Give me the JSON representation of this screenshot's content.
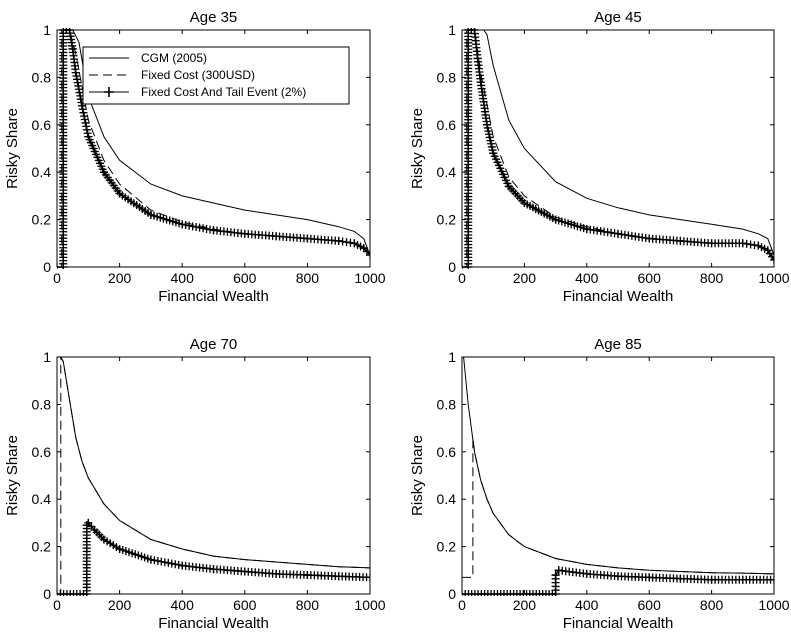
{
  "chart_data": [
    {
      "type": "line",
      "title": "Age 35",
      "xlabel": "Financial Wealth",
      "ylabel": "Risky Share",
      "xlim": [
        0,
        1000
      ],
      "ylim": [
        0,
        1
      ],
      "xticks": [
        0,
        200,
        400,
        600,
        800,
        1000
      ],
      "yticks": [
        0,
        0.2,
        0.4,
        0.6,
        0.8,
        1
      ],
      "legend": {
        "placement": "top-right",
        "entries": [
          "CGM (2005)",
          "Fixed Cost (300USD)",
          "Fixed Cost And Tail Event (2%)"
        ]
      },
      "series": [
        {
          "name": "CGM (2005)",
          "style": "solid",
          "x": [
            0,
            15,
            30,
            50,
            70,
            100,
            150,
            200,
            300,
            400,
            500,
            600,
            700,
            800,
            900,
            950,
            980,
            1000
          ],
          "y": [
            1,
            1,
            1,
            1,
            0.95,
            0.72,
            0.55,
            0.45,
            0.35,
            0.3,
            0.27,
            0.24,
            0.22,
            0.2,
            0.17,
            0.15,
            0.12,
            0.05
          ]
        },
        {
          "name": "Fixed Cost (300USD)",
          "style": "dashed",
          "x": [
            0,
            15,
            15,
            20,
            40,
            60,
            100,
            150,
            200,
            300,
            400,
            500,
            600,
            700,
            800,
            900,
            950,
            980,
            1000
          ],
          "y": [
            0,
            0,
            1,
            1,
            1,
            0.9,
            0.62,
            0.45,
            0.35,
            0.24,
            0.19,
            0.16,
            0.14,
            0.13,
            0.12,
            0.11,
            0.1,
            0.08,
            0.05
          ]
        },
        {
          "name": "Fixed Cost And Tail Event (2%)",
          "style": "plus",
          "x": [
            0,
            20,
            20,
            30,
            40,
            50,
            60,
            80,
            100,
            150,
            200,
            300,
            400,
            500,
            600,
            700,
            800,
            900,
            950,
            980,
            1000
          ],
          "y": [
            0,
            0,
            1,
            1,
            1,
            0.92,
            0.82,
            0.68,
            0.55,
            0.4,
            0.31,
            0.22,
            0.18,
            0.155,
            0.14,
            0.13,
            0.12,
            0.11,
            0.1,
            0.08,
            0.05
          ]
        }
      ]
    },
    {
      "type": "line",
      "title": "Age 45",
      "xlabel": "Financial Wealth",
      "ylabel": "Risky Share",
      "xlim": [
        0,
        1000
      ],
      "ylim": [
        0,
        1
      ],
      "xticks": [
        0,
        200,
        400,
        600,
        800,
        1000
      ],
      "yticks": [
        0,
        0.2,
        0.4,
        0.6,
        0.8,
        1
      ],
      "series": [
        {
          "name": "CGM (2005)",
          "style": "solid",
          "x": [
            0,
            15,
            30,
            50,
            70,
            80,
            100,
            150,
            200,
            300,
            400,
            500,
            600,
            700,
            800,
            900,
            950,
            980,
            1000
          ],
          "y": [
            1,
            1,
            1,
            1,
            1,
            0.98,
            0.85,
            0.62,
            0.5,
            0.36,
            0.29,
            0.25,
            0.22,
            0.2,
            0.18,
            0.16,
            0.14,
            0.12,
            0.05
          ]
        },
        {
          "name": "Fixed Cost (300USD)",
          "style": "dashed",
          "x": [
            0,
            15,
            15,
            20,
            40,
            60,
            100,
            150,
            200,
            300,
            400,
            500,
            600,
            700,
            800,
            900,
            950,
            980,
            1000
          ],
          "y": [
            0,
            0,
            1,
            1,
            1,
            0.82,
            0.55,
            0.38,
            0.3,
            0.21,
            0.17,
            0.14,
            0.12,
            0.11,
            0.1,
            0.1,
            0.09,
            0.07,
            0.03
          ]
        },
        {
          "name": "Fixed Cost And Tail Event (2%)",
          "style": "plus",
          "x": [
            0,
            20,
            20,
            30,
            40,
            50,
            60,
            80,
            100,
            150,
            200,
            300,
            400,
            500,
            600,
            700,
            800,
            900,
            950,
            980,
            1000
          ],
          "y": [
            0,
            0,
            1,
            1,
            1,
            0.88,
            0.78,
            0.6,
            0.48,
            0.34,
            0.27,
            0.2,
            0.16,
            0.14,
            0.12,
            0.11,
            0.1,
            0.1,
            0.09,
            0.07,
            0.03
          ]
        }
      ]
    },
    {
      "type": "line",
      "title": "Age 70",
      "xlabel": "Financial Wealth",
      "ylabel": "Risky Share",
      "xlim": [
        0,
        1000
      ],
      "ylim": [
        0,
        1
      ],
      "xticks": [
        0,
        200,
        400,
        600,
        800,
        1000
      ],
      "yticks": [
        0,
        0.2,
        0.4,
        0.6,
        0.8,
        1
      ],
      "series": [
        {
          "name": "CGM (2005)",
          "style": "solid",
          "x": [
            0,
            10,
            20,
            40,
            60,
            80,
            100,
            150,
            200,
            300,
            400,
            500,
            600,
            700,
            800,
            900,
            1000
          ],
          "y": [
            1,
            1,
            0.98,
            0.82,
            0.66,
            0.56,
            0.49,
            0.38,
            0.31,
            0.23,
            0.19,
            0.16,
            0.145,
            0.135,
            0.125,
            0.115,
            0.11
          ]
        },
        {
          "name": "Fixed Cost (300USD)",
          "style": "dashed",
          "x": [
            0,
            12,
            12,
            20,
            40,
            60,
            80,
            100,
            150,
            200,
            300,
            400,
            500,
            600,
            700,
            800,
            900,
            1000
          ],
          "y": [
            0,
            0,
            1,
            0.98,
            0.82,
            0.66,
            0.56,
            0.49,
            0.38,
            0.31,
            0.23,
            0.19,
            0.16,
            0.145,
            0.135,
            0.125,
            0.115,
            0.11
          ]
        },
        {
          "name": "Fixed Cost And Tail Event (2%)",
          "style": "plus",
          "x": [
            0,
            95,
            95,
            100,
            120,
            150,
            200,
            300,
            400,
            500,
            600,
            700,
            800,
            900,
            1000
          ],
          "y": [
            0,
            0,
            0.29,
            0.3,
            0.27,
            0.23,
            0.19,
            0.145,
            0.12,
            0.105,
            0.095,
            0.085,
            0.08,
            0.075,
            0.07
          ]
        }
      ]
    },
    {
      "type": "line",
      "title": "Age 85",
      "xlabel": "Financial Wealth",
      "ylabel": "Risky Share",
      "xlim": [
        0,
        1000
      ],
      "ylim": [
        0,
        1
      ],
      "xticks": [
        0,
        200,
        400,
        600,
        800,
        1000
      ],
      "yticks": [
        0,
        0.2,
        0.4,
        0.6,
        0.8,
        1
      ],
      "series": [
        {
          "name": "CGM (2005)",
          "style": "solid",
          "x": [
            0,
            5,
            20,
            40,
            60,
            80,
            100,
            150,
            200,
            300,
            400,
            500,
            600,
            700,
            800,
            900,
            1000
          ],
          "y": [
            1,
            1,
            0.8,
            0.6,
            0.48,
            0.4,
            0.34,
            0.25,
            0.2,
            0.15,
            0.125,
            0.11,
            0.1,
            0.095,
            0.09,
            0.088,
            0.085
          ]
        },
        {
          "name": "Fixed Cost (300USD)",
          "style": "dashed",
          "x": [
            0,
            35,
            35,
            40,
            60,
            80,
            100,
            150,
            200,
            300,
            400,
            500,
            600,
            700,
            800,
            900,
            1000
          ],
          "y": [
            0.07,
            0.07,
            0.66,
            0.6,
            0.48,
            0.4,
            0.34,
            0.25,
            0.2,
            0.15,
            0.125,
            0.11,
            0.1,
            0.095,
            0.09,
            0.088,
            0.085
          ]
        },
        {
          "name": "Fixed Cost And Tail Event (2%)",
          "style": "plus",
          "x": [
            0,
            300,
            300,
            310,
            400,
            500,
            600,
            700,
            800,
            900,
            1000
          ],
          "y": [
            0,
            0,
            0.08,
            0.1,
            0.085,
            0.075,
            0.07,
            0.065,
            0.06,
            0.06,
            0.06
          ]
        }
      ]
    }
  ]
}
